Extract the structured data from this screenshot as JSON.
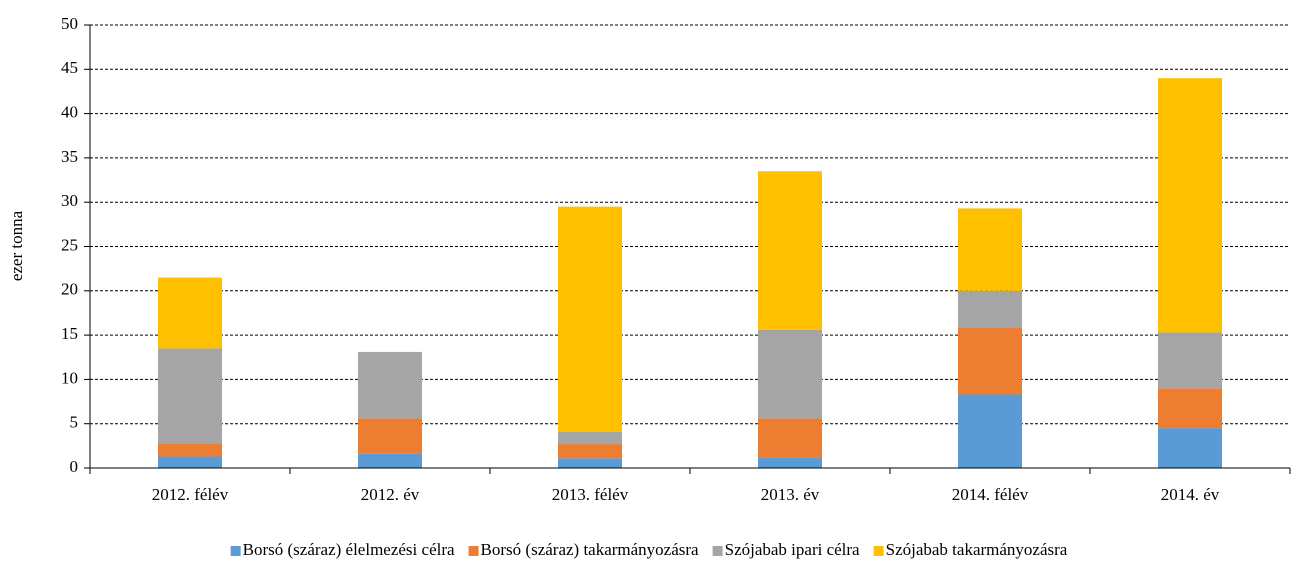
{
  "chart_data": {
    "type": "stacked_bar",
    "ylabel": "ezer tonna",
    "categories": [
      "2012. félév",
      "2012. év",
      "2013. félév",
      "2013. év",
      "2014. félév",
      "2014. év"
    ],
    "series": [
      {
        "name": "Borsó (száraz) élelmezési célra",
        "color": "#5b9bd5",
        "values": [
          1.3,
          1.6,
          1.1,
          1.2,
          8.3,
          4.5
        ]
      },
      {
        "name": "Borsó (száraz) takarmányozásra",
        "color": "#ed7d31",
        "values": [
          1.5,
          4.0,
          1.6,
          4.4,
          7.5,
          4.5
        ]
      },
      {
        "name": "Szójabab ipari célra",
        "color": "#a5a5a5",
        "values": [
          10.7,
          7.5,
          1.4,
          10.0,
          4.2,
          6.3
        ]
      },
      {
        "name": "Szójabab takarmányozásra",
        "color": "#ffc000",
        "values": [
          8.0,
          0,
          25.4,
          17.9,
          9.3,
          28.7
        ]
      }
    ],
    "ylim": [
      0,
      50
    ],
    "yticks": [
      0,
      5,
      10,
      15,
      20,
      25,
      30,
      35,
      40,
      45,
      50
    ],
    "grid": true,
    "legend": "bottom"
  }
}
